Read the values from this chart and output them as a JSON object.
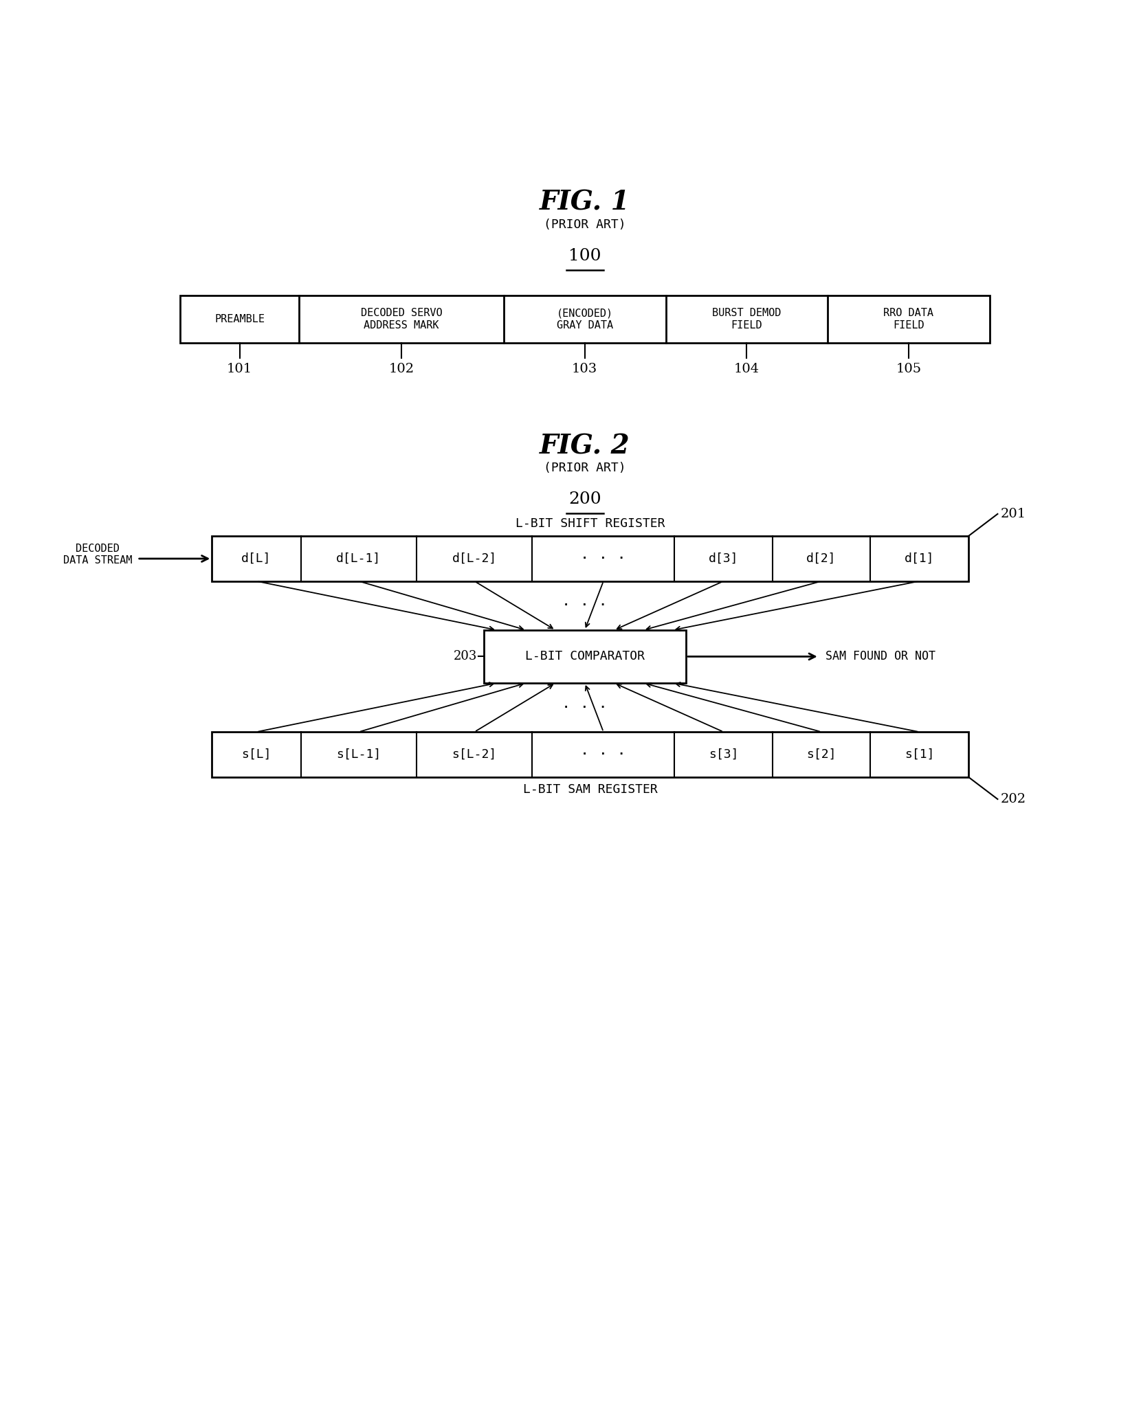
{
  "fig1_title": "FIG. 1",
  "fig1_subtitle": "(PRIOR ART)",
  "fig1_label": "100",
  "fig1_boxes": [
    {
      "label": "PREAMBLE",
      "ref": "101"
    },
    {
      "label": "DECODED SERVO\nADDRESS MARK",
      "ref": "102"
    },
    {
      "label": "(ENCODED)\nGRAY DATA",
      "ref": "103"
    },
    {
      "label": "BURST DEMOD\nFIELD",
      "ref": "104"
    },
    {
      "label": "RRO DATA\nFIELD",
      "ref": "105"
    }
  ],
  "fig1_box_widths": [
    1.4,
    2.4,
    1.9,
    1.9,
    1.9
  ],
  "fig2_title": "FIG. 2",
  "fig2_subtitle": "(PRIOR ART)",
  "fig2_label": "200",
  "shift_reg_label": "L-BIT SHIFT REGISTER",
  "shift_reg_ref": "201",
  "shift_reg_cells": [
    "d[L]",
    "d[L-1]",
    "d[L-2]",
    "· · ·",
    "d[3]",
    "d[2]",
    "d[1]"
  ],
  "sr_widths": [
    1.0,
    1.3,
    1.3,
    1.6,
    1.1,
    1.1,
    1.1
  ],
  "sam_reg_label": "L-BIT SAM REGISTER",
  "sam_reg_ref": "202",
  "sam_reg_cells": [
    "s[L]",
    "s[L-1]",
    "s[L-2]",
    "· · ·",
    "s[3]",
    "s[2]",
    "s[1]"
  ],
  "comparator_label": "L-BIT COMPARATOR",
  "comparator_ref": "203",
  "input_label": "DECODED\nDATA STREAM",
  "output_label": "SAM FOUND OR NOT",
  "bg_color": "#ffffff",
  "text_color": "#000000"
}
